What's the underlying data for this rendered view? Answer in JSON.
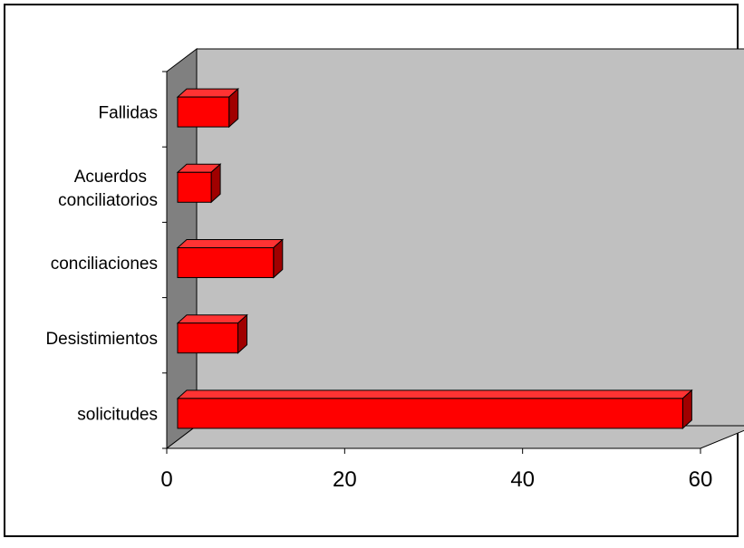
{
  "chart_data": {
    "type": "bar",
    "orientation": "horizontal",
    "style": "3d",
    "categories": [
      "solicitudes",
      "Desistimientos",
      "conciliaciones",
      "Acuerdos conciliatorios",
      "Fallidas"
    ],
    "category_lines": [
      [
        "solicitudes"
      ],
      [
        "Desistimientos"
      ],
      [
        "conciliaciones"
      ],
      [
        "Acuerdos",
        "conciliatorios"
      ],
      [
        "Fallidas"
      ]
    ],
    "values": [
      58,
      8,
      12,
      5,
      7
    ],
    "xlim": [
      0,
      60
    ],
    "xticks": [
      "0",
      "20",
      "40",
      "60"
    ],
    "title": "",
    "xlabel": "",
    "ylabel": "",
    "grid": false,
    "colors": {
      "bar_front": "#ff0000",
      "bar_top": "#ff3333",
      "bar_side": "#a00000",
      "wall_back": "#c0c0c0",
      "wall_side": "#808080",
      "floor": "#c0c0c0"
    }
  }
}
